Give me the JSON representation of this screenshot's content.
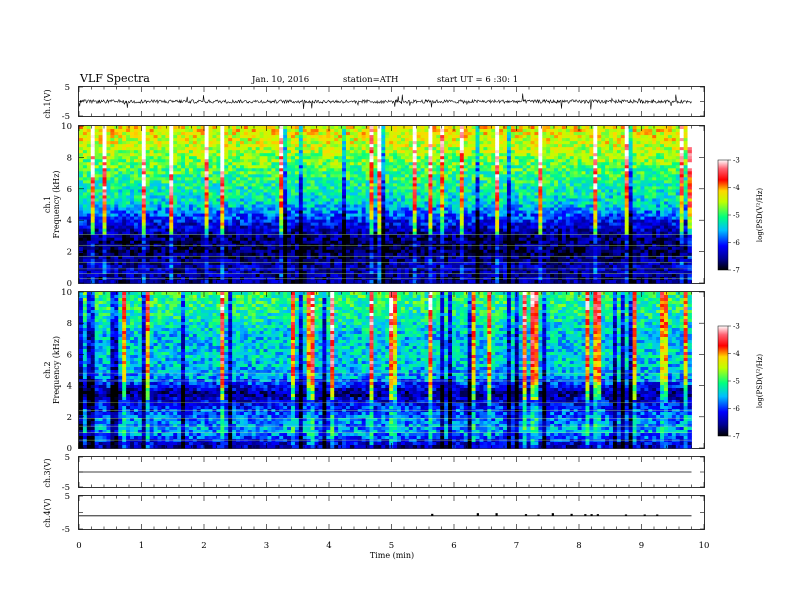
{
  "header": {
    "title": "VLF Spectra",
    "date": "Jan. 10, 2016",
    "station": "station=ATH",
    "start": "start UT = 6 :30: 1"
  },
  "chart_data": [
    {
      "type": "line",
      "panel": "ch1-waveform",
      "ylabel": "ch.1(V)",
      "ylim": [
        -5,
        5
      ],
      "yticks": [
        "5",
        "-5"
      ],
      "xlim": [
        0,
        10
      ],
      "data_end_min": 9.8,
      "baseline_v": 0.0,
      "noise_amplitude_v": 1.2
    },
    {
      "type": "heatmap",
      "panel": "ch1-spectrogram",
      "ylabel": "ch.1 Frequency (kHz)",
      "ylim": [
        0,
        10
      ],
      "yticks": [
        "0",
        "2",
        "4",
        "6",
        "8",
        "10"
      ],
      "xlim": [
        0,
        10
      ],
      "data_end_min": 9.8,
      "colorbar": {
        "label": "log(PSD(V²/Hz)",
        "ticks": [
          "-3",
          "-4",
          "-5",
          "-6",
          "-7"
        ],
        "range": [
          -7,
          -3
        ]
      },
      "profile_log_psd": [
        {
          "khz": 0.2,
          "v": -6.6
        },
        {
          "khz": 1.0,
          "v": -6.4
        },
        {
          "khz": 2.0,
          "v": -6.8
        },
        {
          "khz": 3.0,
          "v": -6.6
        },
        {
          "khz": 4.0,
          "v": -6.1
        },
        {
          "khz": 5.0,
          "v": -5.4
        },
        {
          "khz": 6.0,
          "v": -5.2
        },
        {
          "khz": 7.0,
          "v": -5.0
        },
        {
          "khz": 8.0,
          "v": -4.7
        },
        {
          "khz": 9.0,
          "v": -4.4
        },
        {
          "khz": 10.0,
          "v": -4.3
        }
      ]
    },
    {
      "type": "heatmap",
      "panel": "ch2-spectrogram",
      "ylabel": "ch.2 Frequency (kHz)",
      "ylim": [
        0,
        10
      ],
      "yticks": [
        "0",
        "2",
        "4",
        "6",
        "8",
        "10"
      ],
      "xlim": [
        0,
        10
      ],
      "data_end_min": 9.8,
      "colorbar": {
        "label": "log(PSD(V²/Hz)",
        "ticks": [
          "-3",
          "-4",
          "-5",
          "-6",
          "-7"
        ],
        "range": [
          -7,
          -3
        ]
      },
      "profile_log_psd": [
        {
          "khz": 0.2,
          "v": -6.4
        },
        {
          "khz": 1.0,
          "v": -5.6
        },
        {
          "khz": 2.0,
          "v": -5.8
        },
        {
          "khz": 3.0,
          "v": -6.3
        },
        {
          "khz": 3.5,
          "v": -6.6
        },
        {
          "khz": 4.5,
          "v": -5.6
        },
        {
          "khz": 6.0,
          "v": -5.4
        },
        {
          "khz": 7.0,
          "v": -5.5
        },
        {
          "khz": 8.0,
          "v": -5.3
        },
        {
          "khz": 9.0,
          "v": -5.1
        },
        {
          "khz": 10.0,
          "v": -5.0
        }
      ]
    },
    {
      "type": "line",
      "panel": "ch3-waveform",
      "ylabel": "ch.3(V)",
      "ylim": [
        -5,
        5
      ],
      "yticks": [
        "5",
        "-5"
      ],
      "xlim": [
        0,
        10
      ],
      "data_end_min": 9.8,
      "baseline_v": 0.0
    },
    {
      "type": "line",
      "panel": "ch4-waveform",
      "ylabel": "ch.4(V)",
      "ylim": [
        -5,
        5
      ],
      "yticks": [
        "5",
        "-5"
      ],
      "xlim": [
        0,
        10
      ],
      "data_end_min": 9.8,
      "baseline_v": -1.0,
      "pulse_times_min": [
        5.65,
        6.38,
        6.68,
        7.15,
        7.35,
        7.58,
        7.88,
        8.1,
        8.2,
        8.3,
        8.75,
        9.05,
        9.25
      ],
      "pulse_heights_v": [
        0.6,
        0.8,
        0.8,
        0.5,
        0.4,
        0.8,
        0.6,
        0.5,
        0.5,
        0.5,
        0.4,
        0.4,
        0.4
      ]
    }
  ],
  "xaxis": {
    "label": "Time (min)",
    "ticks": [
      "0",
      "1",
      "2",
      "3",
      "4",
      "5",
      "6",
      "7",
      "8",
      "9",
      "10"
    ]
  }
}
